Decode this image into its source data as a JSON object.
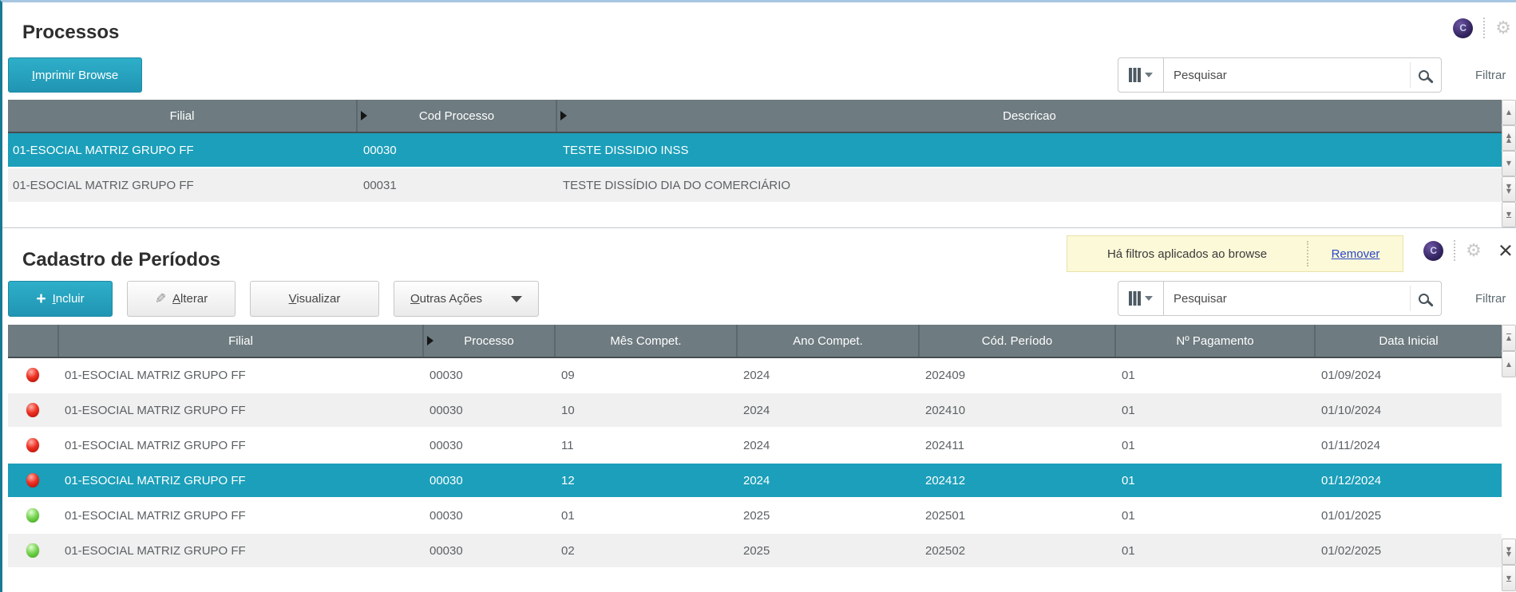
{
  "colors": {
    "accent_teal": "#1b9fba",
    "header_slate": "#6e7b80",
    "selected_row": "#1b9fba",
    "banner_yellow": "#fcf9d8",
    "link_blue": "#2b46c8",
    "status_red": "#ee3224",
    "status_green": "#79d553"
  },
  "icon_names": [
    "assistant-icon",
    "gear-icon",
    "close-icon",
    "search-icon",
    "columns-selector-icon",
    "dropdown-caret-icon",
    "plus-icon",
    "pencil-icon",
    "sort-marker-icon",
    "scroll-top-icon",
    "scroll-up-icon",
    "page-up-icon",
    "scroll-down-icon",
    "page-down-icon",
    "scroll-end-icon",
    "status-led-red",
    "status-led-green"
  ],
  "icons": {
    "assistant_label": "C"
  },
  "panel1": {
    "title": "Processos",
    "print_button": "Imprimir Browse",
    "search_placeholder": "Pesquisar",
    "filter_label": "Filtrar",
    "columns": [
      "Filial",
      "Cod Processo",
      "Descricao"
    ],
    "rows": [
      {
        "filial": "01-ESOCIAL MATRIZ GRUPO FF",
        "cod_processo": "00030",
        "descricao": "TESTE DISSIDIO INSS",
        "selected": true
      },
      {
        "filial": "01-ESOCIAL MATRIZ GRUPO FF",
        "cod_processo": "00031",
        "descricao": "TESTE DISSÍDIO DIA DO COMERCIÁRIO",
        "selected": false
      }
    ]
  },
  "panel2": {
    "title": "Cadastro de Períodos",
    "filter_banner": {
      "message": "Há filtros aplicados ao browse",
      "action_label": "Remover"
    },
    "buttons": {
      "incluir": "Incluir",
      "alterar": "Alterar",
      "visualizar": "Visualizar",
      "outras_acoes": "Outras Ações"
    },
    "search_placeholder": "Pesquisar",
    "filter_label": "Filtrar",
    "columns": [
      "Filial",
      "Processo",
      "Mês Compet.",
      "Ano Compet.",
      "Cód. Período",
      "Nº Pagamento",
      "Data Inicial"
    ],
    "rows": [
      {
        "status": "red",
        "filial": "01-ESOCIAL MATRIZ GRUPO FF",
        "processo": "00030",
        "mes": "09",
        "ano": "2024",
        "periodo": "202409",
        "pagamento": "01",
        "data_inicial": "01/09/2024",
        "selected": false
      },
      {
        "status": "red",
        "filial": "01-ESOCIAL MATRIZ GRUPO FF",
        "processo": "00030",
        "mes": "10",
        "ano": "2024",
        "periodo": "202410",
        "pagamento": "01",
        "data_inicial": "01/10/2024",
        "selected": false
      },
      {
        "status": "red",
        "filial": "01-ESOCIAL MATRIZ GRUPO FF",
        "processo": "00030",
        "mes": "11",
        "ano": "2024",
        "periodo": "202411",
        "pagamento": "01",
        "data_inicial": "01/11/2024",
        "selected": false
      },
      {
        "status": "red",
        "filial": "01-ESOCIAL MATRIZ GRUPO FF",
        "processo": "00030",
        "mes": "12",
        "ano": "2024",
        "periodo": "202412",
        "pagamento": "01",
        "data_inicial": "01/12/2024",
        "selected": true
      },
      {
        "status": "green",
        "filial": "01-ESOCIAL MATRIZ GRUPO FF",
        "processo": "00030",
        "mes": "01",
        "ano": "2025",
        "periodo": "202501",
        "pagamento": "01",
        "data_inicial": "01/01/2025",
        "selected": false
      },
      {
        "status": "green",
        "filial": "01-ESOCIAL MATRIZ GRUPO FF",
        "processo": "00030",
        "mes": "02",
        "ano": "2025",
        "periodo": "202502",
        "pagamento": "01",
        "data_inicial": "01/02/2025",
        "selected": false
      }
    ]
  }
}
